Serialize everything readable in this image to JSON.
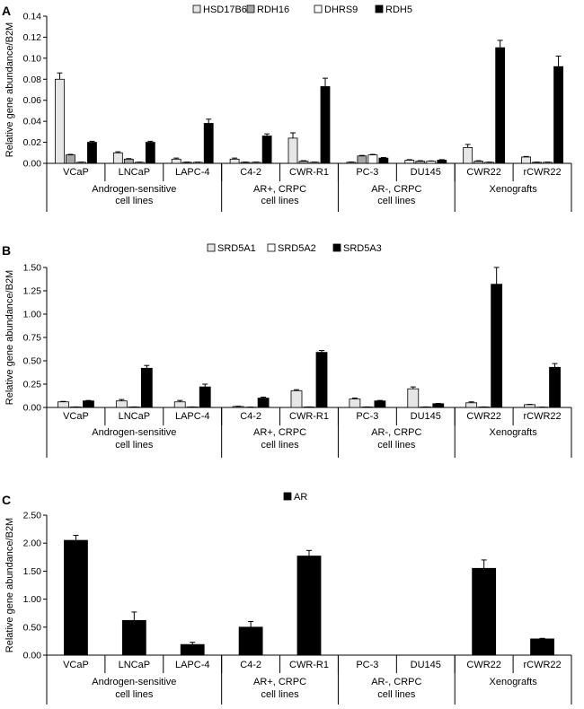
{
  "chart_data": [
    {
      "panel": "A",
      "type": "bar",
      "ylabel": "Relative gene abundance/B2M",
      "ylim": [
        0,
        0.14
      ],
      "yticks": [
        "0.00",
        "0.02",
        "0.04",
        "0.06",
        "0.08",
        "0.10",
        "0.12",
        "0.14"
      ],
      "categories": [
        "VCaP",
        "LNCaP",
        "LAPC-4",
        "C4-2",
        "CWR-R1",
        "PC-3",
        "DU145",
        "CWR22",
        "rCWR22"
      ],
      "groups": [
        {
          "label1": "Androgen-sensitive",
          "label2": "cell lines",
          "count": 3
        },
        {
          "label1": "AR+, CRPC",
          "label2": "cell lines",
          "count": 2
        },
        {
          "label1": "AR-, CRPC",
          "label2": "cell lines",
          "count": 2
        },
        {
          "label1": "Xenografts",
          "label2": "",
          "count": 2
        }
      ],
      "series": [
        {
          "name": "HSD17B6",
          "color": "#e6e6e6",
          "values": [
            0.08,
            0.01,
            0.004,
            0.004,
            0.024,
            0.001,
            0.003,
            0.015,
            0.006
          ],
          "errors": [
            0.006,
            0.001,
            0.001,
            0.001,
            0.005,
            0.0003,
            0.0005,
            0.003,
            0.0005
          ]
        },
        {
          "name": "RDH16",
          "color": "#a6a6a6",
          "values": [
            0.008,
            0.004,
            0.001,
            0.001,
            0.002,
            0.007,
            0.002,
            0.002,
            0.001
          ],
          "errors": [
            0.0005,
            0.0005,
            0.0002,
            0.0002,
            0.0005,
            0.0005,
            0.0005,
            0.0005,
            0.0002
          ]
        },
        {
          "name": "DHRS9",
          "color": "#ffffff",
          "values": [
            0.001,
            0.001,
            0.001,
            0.001,
            0.001,
            0.008,
            0.002,
            0.001,
            0.001
          ],
          "errors": [
            0.0002,
            0.0002,
            0.0002,
            0.0002,
            0.0002,
            0.0005,
            0.0003,
            0.0002,
            0.0002
          ]
        },
        {
          "name": "RDH5",
          "color": "#000000",
          "values": [
            0.02,
            0.02,
            0.038,
            0.026,
            0.073,
            0.005,
            0.003,
            0.11,
            0.092
          ],
          "errors": [
            0.001,
            0.001,
            0.004,
            0.002,
            0.008,
            0.0005,
            0.0005,
            0.007,
            0.01
          ]
        }
      ]
    },
    {
      "panel": "B",
      "type": "bar",
      "ylabel": "Relative gene abundance/B2M",
      "ylim": [
        0,
        1.5
      ],
      "yticks": [
        "0.00",
        "0.25",
        "0.50",
        "0.75",
        "1.00",
        "1.25",
        "1.50"
      ],
      "categories": [
        "VCaP",
        "LNCaP",
        "LAPC-4",
        "C4-2",
        "CWR-R1",
        "PC-3",
        "DU145",
        "CWR22",
        "rCWR22"
      ],
      "groups": [
        {
          "label1": "Androgen-sensitive",
          "label2": "cell lines",
          "count": 3
        },
        {
          "label1": "AR+, CRPC",
          "label2": "cell lines",
          "count": 2
        },
        {
          "label1": "AR-, CRPC",
          "label2": "cell lines",
          "count": 2
        },
        {
          "label1": "Xenografts",
          "label2": "",
          "count": 2
        }
      ],
      "series": [
        {
          "name": "SRD5A1",
          "color": "#e6e6e6",
          "values": [
            0.06,
            0.07,
            0.06,
            0.01,
            0.18,
            0.09,
            0.2,
            0.05,
            0.03
          ],
          "errors": [
            0.005,
            0.015,
            0.015,
            0.003,
            0.01,
            0.01,
            0.02,
            0.01,
            0.003
          ]
        },
        {
          "name": "SRD5A2",
          "color": "#ffffff",
          "values": [
            0.005,
            0.005,
            0.005,
            0.003,
            0.005,
            0.005,
            0.005,
            0.005,
            0.003
          ],
          "errors": [
            0.001,
            0.001,
            0.001,
            0.001,
            0.001,
            0.001,
            0.001,
            0.001,
            0.001
          ]
        },
        {
          "name": "SRD5A3",
          "color": "#000000",
          "values": [
            0.07,
            0.42,
            0.22,
            0.1,
            0.59,
            0.07,
            0.04,
            1.32,
            0.43
          ],
          "errors": [
            0.005,
            0.03,
            0.03,
            0.01,
            0.02,
            0.005,
            0.003,
            0.18,
            0.04
          ]
        }
      ]
    },
    {
      "panel": "C",
      "type": "bar",
      "ylabel": "Relative gene abundance/B2M",
      "ylim": [
        0,
        2.5
      ],
      "yticks": [
        "0.00",
        "0.50",
        "1.00",
        "1.50",
        "2.00",
        "2.50"
      ],
      "categories": [
        "VCaP",
        "LNCaP",
        "LAPC-4",
        "C4-2",
        "CWR-R1",
        "PC-3",
        "DU145",
        "CWR22",
        "rCWR22"
      ],
      "groups": [
        {
          "label1": "Androgen-sensitive",
          "label2": "cell lines",
          "count": 3
        },
        {
          "label1": "AR+, CRPC",
          "label2": "cell lines",
          "count": 2
        },
        {
          "label1": "AR-, CRPC",
          "label2": "cell lines",
          "count": 2
        },
        {
          "label1": "Xenografts",
          "label2": "",
          "count": 2
        }
      ],
      "series": [
        {
          "name": "AR",
          "color": "#000000",
          "values": [
            2.05,
            0.62,
            0.19,
            0.5,
            1.77,
            0,
            0,
            1.55,
            0.29
          ],
          "errors": [
            0.09,
            0.15,
            0.04,
            0.1,
            0.1,
            0,
            0,
            0.15,
            0.01
          ]
        }
      ]
    }
  ]
}
